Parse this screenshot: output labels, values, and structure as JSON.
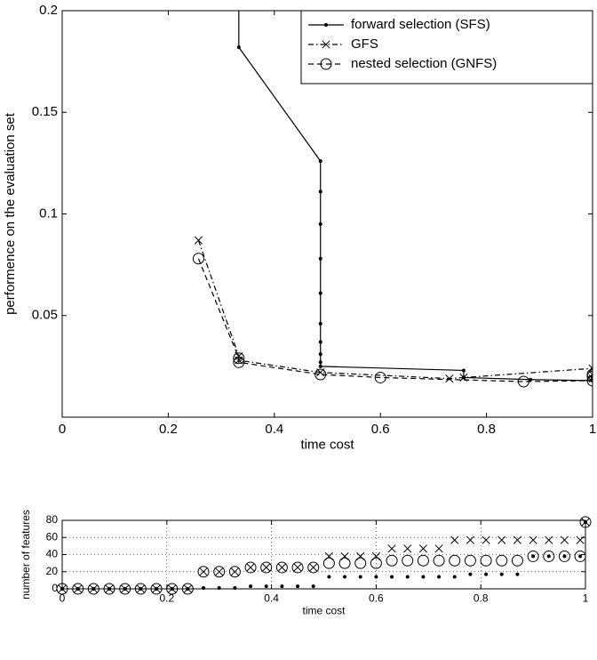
{
  "chart_data": [
    {
      "type": "line",
      "xlabel": "time cost",
      "ylabel": "performence on the evaluation set",
      "xlim": [
        0,
        1
      ],
      "ylim": [
        0,
        0.2
      ],
      "xticks": [
        0,
        0.2,
        0.4,
        0.6,
        0.8,
        1
      ],
      "yticks": [
        0.05,
        0.1,
        0.15,
        0.2
      ],
      "grid": false,
      "legend": "upper right",
      "series": [
        {
          "name": "forward selection (SFS)",
          "color": "#000000",
          "marker": "dot",
          "line_style": "solid",
          "x": [
            0.333,
            0.333,
            0.487,
            0.487,
            0.487,
            0.487,
            0.487,
            0.487,
            0.487,
            0.487,
            0.487,
            0.487,
            0.757,
            0.757,
            0.883,
            1,
            1,
            1
          ],
          "values": [
            0.25,
            0.182,
            0.126,
            0.111,
            0.095,
            0.078,
            0.061,
            0.046,
            0.037,
            0.031,
            0.027,
            0.025,
            0.023,
            0.0195,
            0.0185,
            0.018,
            0.019,
            0.02
          ]
        },
        {
          "name": "GFS",
          "color": "#000000",
          "marker": "x",
          "line_style": "dashdot",
          "x": [
            0.257,
            0.333,
            0.333,
            0.487,
            0.73,
            0.757,
            1,
            1,
            1
          ],
          "values": [
            0.087,
            0.03,
            0.028,
            0.022,
            0.019,
            0.0195,
            0.024,
            0.021,
            0.019
          ]
        },
        {
          "name": "nested selection (GNFS)",
          "color": "#000000",
          "marker": "circle",
          "line_style": "dashed",
          "x": [
            0.257,
            0.333,
            0.333,
            0.487,
            0.6,
            0.87,
            1,
            1,
            1
          ],
          "values": [
            0.078,
            0.029,
            0.027,
            0.021,
            0.0195,
            0.0175,
            0.018,
            0.02,
            0.021
          ]
        }
      ]
    },
    {
      "type": "scatter",
      "xlabel": "time cost",
      "ylabel": "number of features",
      "xlim": [
        0,
        1
      ],
      "ylim": [
        0,
        80
      ],
      "xticks": [
        0,
        0.2,
        0.4,
        0.6,
        0.8,
        1
      ],
      "yticks": [
        0,
        20,
        40,
        60,
        80
      ],
      "grid": true,
      "x": [
        0,
        0.03,
        0.06,
        0.09,
        0.12,
        0.15,
        0.18,
        0.21,
        0.24,
        0.27,
        0.3,
        0.33,
        0.36,
        0.39,
        0.42,
        0.45,
        0.48,
        0.51,
        0.54,
        0.57,
        0.6,
        0.63,
        0.66,
        0.69,
        0.72,
        0.75,
        0.78,
        0.81,
        0.84,
        0.87,
        0.9,
        0.93,
        0.96,
        0.99,
        1
      ],
      "series": [
        {
          "color": "#000000",
          "marker": "dot",
          "line_style": "none",
          "values": [
            0,
            0,
            0,
            0,
            0,
            0,
            0,
            0,
            0,
            1,
            1,
            1,
            3,
            3,
            3,
            3,
            3,
            14,
            14,
            14,
            14,
            14,
            14,
            14,
            14,
            14,
            17,
            17,
            17,
            17,
            38,
            38,
            38,
            38,
            78
          ]
        },
        {
          "color": "#000000",
          "marker": "x",
          "line_style": "none",
          "values": [
            0,
            0,
            0,
            0,
            0,
            0,
            0,
            0,
            0,
            20,
            20,
            20,
            25,
            25,
            25,
            25,
            25,
            38,
            38,
            38,
            38,
            47,
            47,
            47,
            47,
            57,
            57,
            57,
            57,
            57,
            57,
            57,
            57,
            57,
            78
          ]
        },
        {
          "color": "#000000",
          "marker": "circle",
          "line_style": "none",
          "values": [
            0,
            0,
            0,
            0,
            0,
            0,
            0,
            0,
            0,
            20,
            20,
            20,
            25,
            25,
            25,
            25,
            25,
            30,
            30,
            30,
            30,
            33,
            33,
            33,
            33,
            33,
            33,
            33,
            33,
            33,
            38,
            38,
            38,
            38,
            78
          ]
        }
      ]
    }
  ]
}
